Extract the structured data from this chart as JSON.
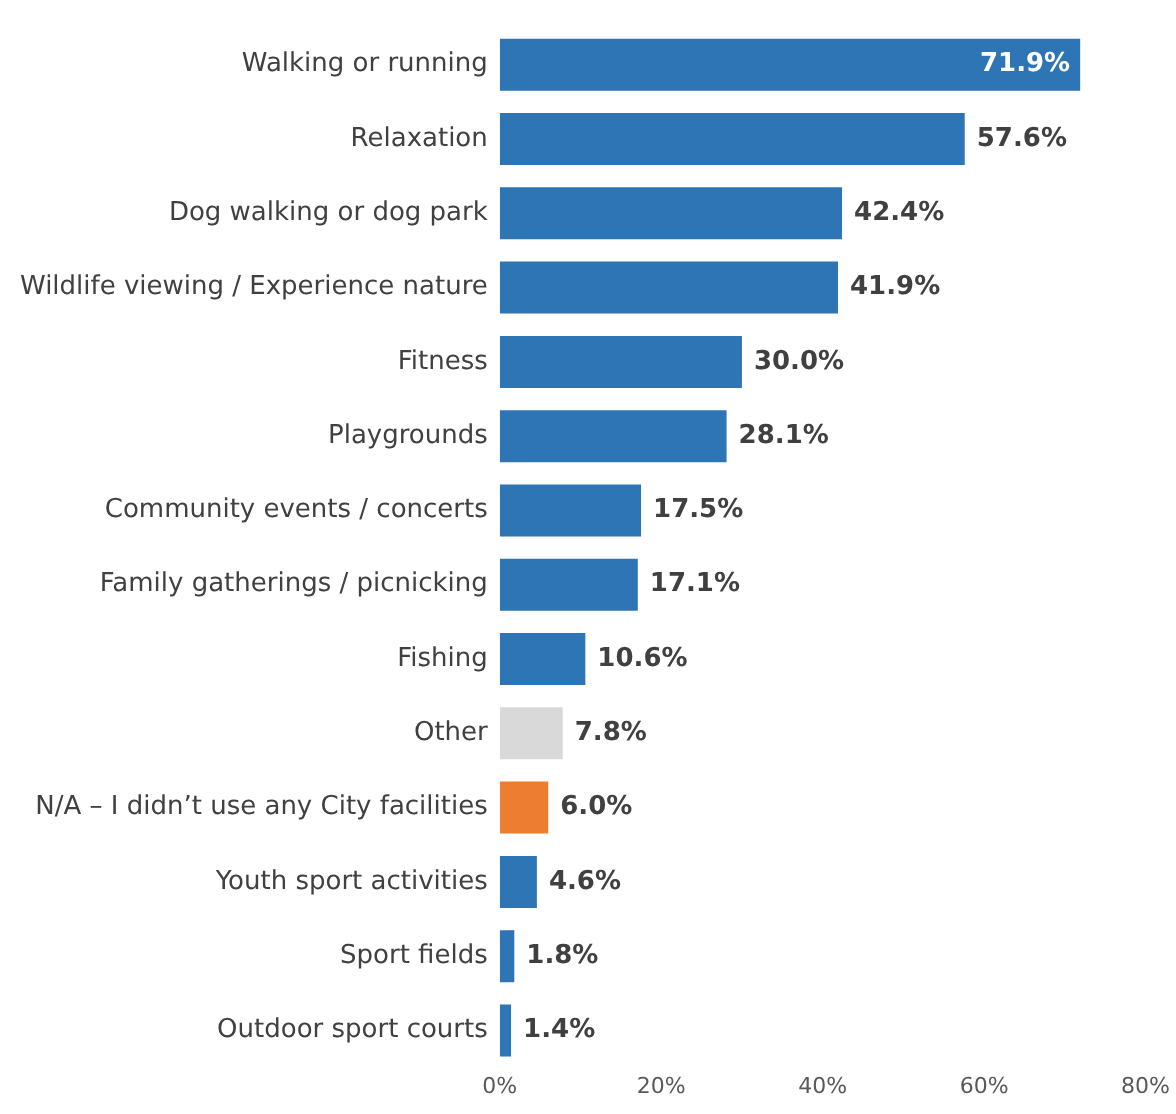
{
  "chart_data": {
    "type": "bar",
    "orientation": "horizontal",
    "categories": [
      "Walking or running",
      "Relaxation",
      "Dog walking or dog park",
      "Wildlife viewing / Experience nature",
      "Fitness",
      "Playgrounds",
      "Community events / concerts",
      "Family gatherings / picnicking",
      "Fishing",
      "Other",
      "N/A – I didn’t use any City facilities",
      "Youth sport activities",
      "Sport fields",
      "Outdoor sport courts"
    ],
    "values": [
      71.9,
      57.6,
      42.4,
      41.9,
      30.0,
      28.1,
      17.5,
      17.1,
      10.6,
      7.8,
      6.0,
      4.6,
      1.8,
      1.4
    ],
    "colors": [
      "#2e75b6",
      "#2e75b6",
      "#2e75b6",
      "#2e75b6",
      "#2e75b6",
      "#2e75b6",
      "#2e75b6",
      "#2e75b6",
      "#2e75b6",
      "#d9d9d9",
      "#ed7d31",
      "#2e75b6",
      "#2e75b6",
      "#2e75b6"
    ],
    "value_labels": [
      "71.9%",
      "57.6%",
      "42.4%",
      "41.9%",
      "30.0%",
      "28.1%",
      "17.5%",
      "17.1%",
      "10.6%",
      "7.8%",
      "6.0%",
      "4.6%",
      "1.8%",
      "1.4%"
    ],
    "xlim": [
      0,
      80
    ],
    "xticks": [
      {
        "value": 0,
        "label": "0%"
      },
      {
        "value": 20,
        "label": "20%"
      },
      {
        "value": 40,
        "label": "40%"
      },
      {
        "value": 60,
        "label": "60%"
      },
      {
        "value": 80,
        "label": "80%"
      }
    ],
    "grid": false,
    "legend": false
  }
}
